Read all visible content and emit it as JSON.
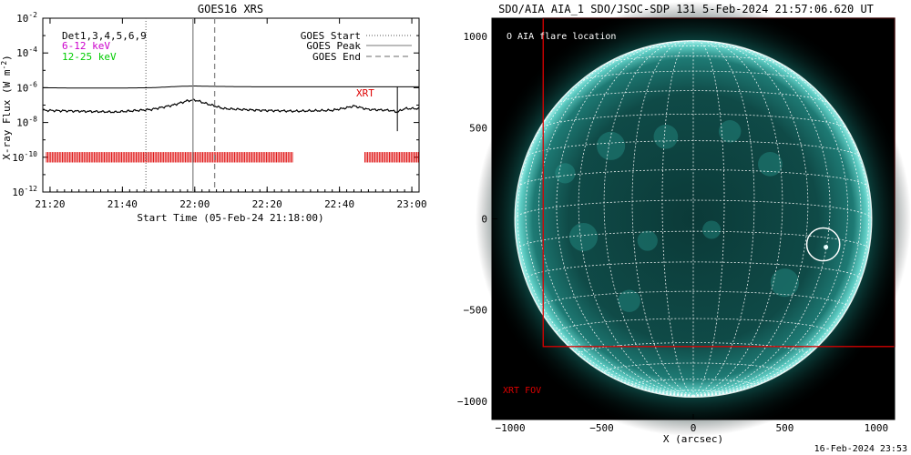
{
  "chart_data": [
    {
      "type": "line",
      "title": "GOES16 XRS",
      "xlabel": "Start Time (05-Feb-24 21:18:00)",
      "ylabel": "X-ray Flux (W m⁻²)",
      "ylabel_base": "X-ray Flux (W m",
      "ylabel_sup": "-2",
      "ylabel_end": ")",
      "scale": "log",
      "xlim_minutes": [
        0,
        104
      ],
      "ylim_exp": [
        -12,
        -2
      ],
      "xticks": [
        {
          "label": "21:20",
          "minute": 2
        },
        {
          "label": "21:40",
          "minute": 22
        },
        {
          "label": "22:00",
          "minute": 42
        },
        {
          "label": "22:20",
          "minute": 62
        },
        {
          "label": "22:40",
          "minute": 82
        },
        {
          "label": "23:00",
          "minute": 102
        }
      ],
      "yticks": [
        {
          "base": "10",
          "exp": "-2",
          "value": -2
        },
        {
          "base": "10",
          "exp": "-4",
          "value": -4
        },
        {
          "base": "10",
          "exp": "-6",
          "value": -6
        },
        {
          "base": "10",
          "exp": "-8",
          "value": -8
        },
        {
          "base": "10",
          "exp": "-10",
          "value": -10
        },
        {
          "base": "10",
          "exp": "-12",
          "value": -12
        }
      ],
      "legend_left": [
        {
          "text": "Det1,3,4,5,6,9",
          "color": "#000000"
        },
        {
          "text": "6-12 keV",
          "color": "#cc00cc"
        },
        {
          "text": "12-25 keV",
          "color": "#00cc00"
        }
      ],
      "legend_right": [
        {
          "text": "GOES Start",
          "style": "dotted"
        },
        {
          "text": "GOES Peak",
          "style": "solid"
        },
        {
          "text": "GOES End",
          "style": "dashed"
        }
      ],
      "markers_minutes": {
        "start": 28.5,
        "peak": 41.5,
        "end": 47.5
      },
      "xrt_label": "XRT",
      "xrt_line_minute": 98,
      "series": [
        {
          "color": "#000000",
          "x_minutes": [
            0,
            10,
            20,
            30,
            38,
            42,
            46,
            60,
            80,
            104
          ],
          "log_values": [
            -6.0,
            -6.02,
            -6.02,
            -6.0,
            -5.92,
            -5.9,
            -5.92,
            -5.95,
            -5.95,
            -5.95
          ]
        },
        {
          "color": "#000000",
          "x_minutes": [
            0,
            10,
            20,
            30,
            36,
            40,
            42,
            45,
            50,
            60,
            70,
            80,
            84,
            86,
            90,
            96,
            98,
            100,
            104
          ],
          "log_values": [
            -7.3,
            -7.35,
            -7.4,
            -7.25,
            -7.0,
            -6.75,
            -6.7,
            -6.9,
            -7.2,
            -7.3,
            -7.35,
            -7.3,
            -7.15,
            -7.05,
            -7.25,
            -7.3,
            -7.4,
            -7.2,
            -7.2
          ]
        }
      ],
      "coverage_color": "#dd0000",
      "coverage_log_range": [
        -10.3,
        -9.7
      ],
      "coverage_segments_minutes": [
        [
          1,
          69
        ],
        [
          89,
          104
        ]
      ]
    },
    {
      "type": "scatter",
      "title": "SDO/AIA AIA_1 SDO/JSOC-SDP 131  5-Feb-2024 21:57:06.620 UT",
      "xlabel": "X (arcsec)",
      "xlim": [
        -1100,
        1100
      ],
      "ylim": [
        -1100,
        1100
      ],
      "xticks": [
        "−1000",
        "−500",
        "0",
        "500",
        "1000"
      ],
      "xtick_values": [
        -1000,
        -500,
        0,
        500,
        1000
      ],
      "yticks": [
        "1000",
        "500",
        "0",
        "−500",
        "−1000"
      ],
      "ytick_values": [
        1000,
        500,
        0,
        -500,
        -1000
      ],
      "solar_radius_arcsec": 975,
      "legend_label": "O AIA flare location",
      "flare_location_arcsec": [
        710,
        -140
      ],
      "flare_circle_radius_arcsec": 90,
      "xrt_fov_label": "XRT FOV",
      "xrt_fov_arcsec": {
        "x": [
          -820,
          1100
        ],
        "y": [
          -700,
          1100
        ]
      },
      "grid": true,
      "fov_color": "#dd0000"
    }
  ],
  "footer_timestamp": "16-Feb-2024 23:53"
}
